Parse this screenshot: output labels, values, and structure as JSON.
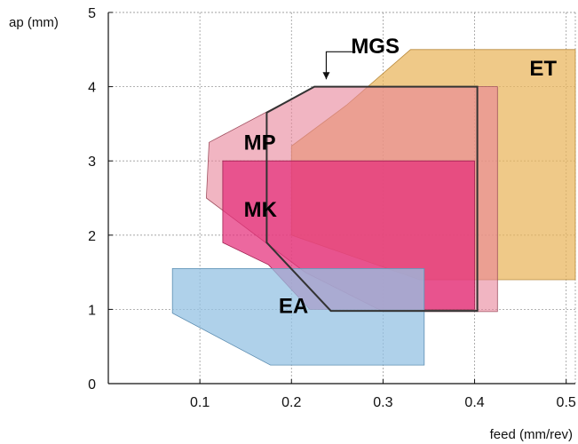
{
  "chart_data": {
    "type": "area",
    "xlabel": "feed (mm/rev)",
    "ylabel": "ap (mm)",
    "xlim": [
      0,
      0.51
    ],
    "ylim": [
      0,
      5
    ],
    "x_ticks": [
      "0.1",
      "0.2",
      "0.3",
      "0.4",
      "0.5"
    ],
    "x_tick_values": [
      0.1,
      0.2,
      0.3,
      0.4,
      0.5
    ],
    "y_ticks": [
      "0",
      "1",
      "2",
      "3",
      "4",
      "5"
    ],
    "y_tick_values": [
      0,
      1,
      2,
      3,
      4,
      5
    ],
    "grid": true,
    "regions": [
      {
        "name": "ET",
        "color": "#e9b45a",
        "opacity": 0.72,
        "stroke": "#b98a3c",
        "points": [
          [
            0.2,
            2.0
          ],
          [
            0.2,
            3.2
          ],
          [
            0.26,
            3.75
          ],
          [
            0.33,
            4.5
          ],
          [
            0.51,
            4.5
          ],
          [
            0.51,
            1.4
          ],
          [
            0.34,
            1.4
          ]
        ]
      },
      {
        "name": "MP",
        "color": "#e8839a",
        "opacity": 0.6,
        "stroke": "#a05060",
        "points": [
          [
            0.11,
            3.25
          ],
          [
            0.225,
            4.0
          ],
          [
            0.425,
            4.0
          ],
          [
            0.425,
            0.97
          ],
          [
            0.3,
            0.97
          ],
          [
            0.215,
            1.5
          ],
          [
            0.107,
            2.5
          ]
        ]
      },
      {
        "name": "MK",
        "color": "#e52e7a",
        "opacity": 0.72,
        "stroke": "#a02050",
        "points": [
          [
            0.125,
            3.0
          ],
          [
            0.4,
            3.0
          ],
          [
            0.4,
            1.0
          ],
          [
            0.22,
            1.0
          ],
          [
            0.175,
            1.6
          ],
          [
            0.125,
            1.9
          ]
        ]
      },
      {
        "name": "EA",
        "color": "#94c1e3",
        "opacity": 0.75,
        "stroke": "#5f8fb2",
        "points": [
          [
            0.07,
            1.55
          ],
          [
            0.345,
            1.55
          ],
          [
            0.345,
            0.25
          ],
          [
            0.177,
            0.25
          ],
          [
            0.07,
            0.95
          ]
        ]
      }
    ],
    "outlines": [
      {
        "name": "MGS",
        "color": "#333333",
        "points": [
          [
            0.173,
            3.65
          ],
          [
            0.225,
            4.0
          ],
          [
            0.403,
            4.0
          ],
          [
            0.403,
            0.98
          ],
          [
            0.243,
            0.98
          ],
          [
            0.173,
            1.9
          ]
        ]
      }
    ],
    "labels": [
      {
        "text": "ET",
        "x": 0.46,
        "y": 4.15
      },
      {
        "text": "MP",
        "x": 0.148,
        "y": 3.15
      },
      {
        "text": "MK",
        "x": 0.148,
        "y": 2.25
      },
      {
        "text": "EA",
        "x": 0.186,
        "y": 0.95
      },
      {
        "text": "MGS",
        "x": 0.265,
        "y": 4.45
      }
    ],
    "arrow": {
      "from": [
        0.27,
        4.47
      ],
      "corner": [
        0.238,
        4.47
      ],
      "to": [
        0.238,
        4.1
      ]
    }
  }
}
